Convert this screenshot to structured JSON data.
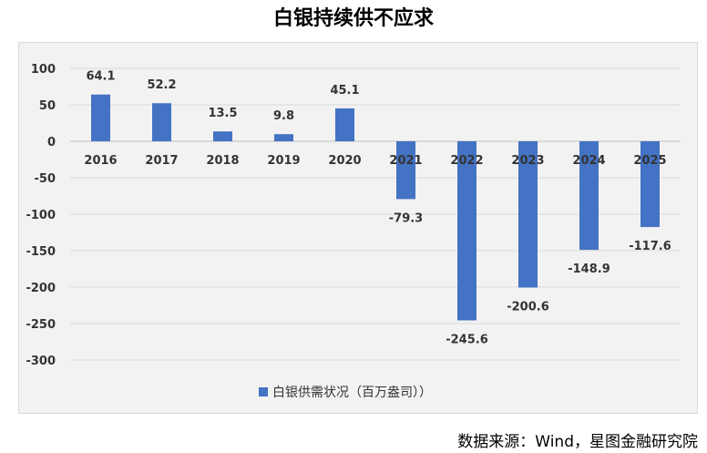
{
  "title": "白银持续供不应求",
  "source": "数据来源：Wind，星图金融研究院",
  "chart_data": {
    "type": "bar",
    "categories": [
      "2016",
      "2017",
      "2018",
      "2019",
      "2020",
      "2021",
      "2022",
      "2023",
      "2024",
      "2025"
    ],
    "series": [
      {
        "name": "白银供需状况（百万盎司））",
        "values": [
          64.1,
          52.2,
          13.5,
          9.8,
          45.1,
          -79.3,
          -245.6,
          -200.6,
          -148.9,
          -117.6
        ]
      }
    ],
    "data_labels": [
      "64.1",
      "52.2",
      "13.5",
      "9.8",
      "45.1",
      "-79.3",
      "-245.6",
      "-200.6",
      "-148.9",
      "-117.6"
    ],
    "yticks": [
      "100",
      "50",
      "0",
      "-50",
      "-100",
      "-150",
      "-200",
      "-250",
      "-300"
    ],
    "ylim": [
      -300,
      100
    ],
    "grid": true,
    "legend": "bottom",
    "bar_color": "#4472c4"
  }
}
